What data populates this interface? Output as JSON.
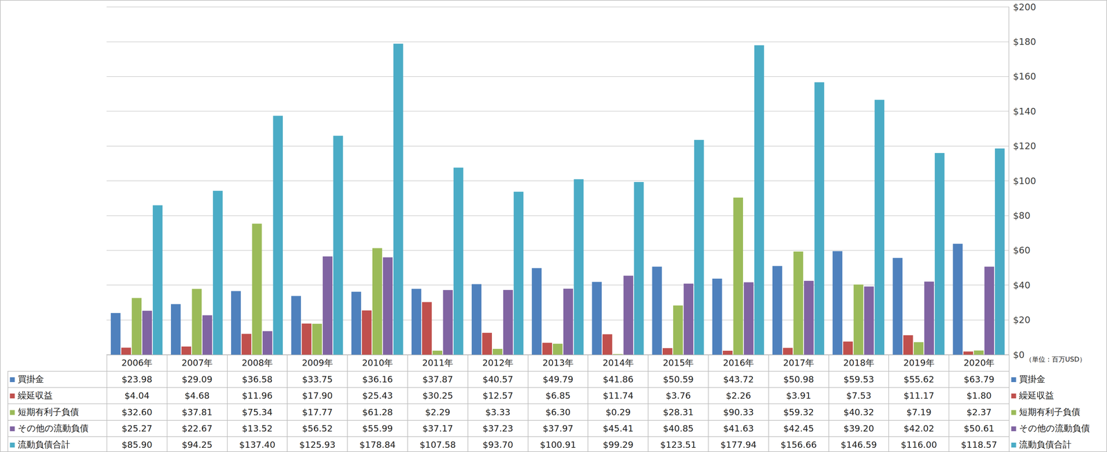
{
  "chart_data": {
    "type": "bar",
    "categories": [
      "2006年",
      "2007年",
      "2008年",
      "2009年",
      "2010年",
      "2011年",
      "2012年",
      "2013年",
      "2014年",
      "2015年",
      "2016年",
      "2017年",
      "2018年",
      "2019年",
      "2020年"
    ],
    "annotation": "（単位：百万USD）",
    "series": [
      {
        "name": "買掛金",
        "color": "#4f81bd",
        "values": [
          23.98,
          29.09,
          36.58,
          33.75,
          36.16,
          37.87,
          40.57,
          49.79,
          41.86,
          50.59,
          43.72,
          50.98,
          59.53,
          55.62,
          63.79
        ],
        "value_labels": [
          "$23.98",
          "$29.09",
          "$36.58",
          "$33.75",
          "$36.16",
          "$37.87",
          "$40.57",
          "$49.79",
          "$41.86",
          "$50.59",
          "$43.72",
          "$50.98",
          "$59.53",
          "$55.62",
          "$63.79"
        ]
      },
      {
        "name": "繰延収益",
        "color": "#c0504d",
        "values": [
          4.04,
          4.68,
          11.96,
          17.9,
          25.43,
          30.25,
          12.57,
          6.85,
          11.74,
          3.76,
          2.26,
          3.91,
          7.53,
          11.17,
          1.8
        ],
        "value_labels": [
          "$4.04",
          "$4.68",
          "$11.96",
          "$17.90",
          "$25.43",
          "$30.25",
          "$12.57",
          "$6.85",
          "$11.74",
          "$3.76",
          "$2.26",
          "$3.91",
          "$7.53",
          "$11.17",
          "$1.80"
        ]
      },
      {
        "name": "短期有利子負債",
        "color": "#9bbb59",
        "values": [
          32.6,
          37.81,
          75.34,
          17.77,
          61.28,
          2.29,
          3.33,
          6.3,
          0.29,
          28.31,
          90.33,
          59.32,
          40.32,
          7.19,
          2.37
        ],
        "value_labels": [
          "$32.60",
          "$37.81",
          "$75.34",
          "$17.77",
          "$61.28",
          "$2.29",
          "$3.33",
          "$6.30",
          "$0.29",
          "$28.31",
          "$90.33",
          "$59.32",
          "$40.32",
          "$7.19",
          "$2.37"
        ]
      },
      {
        "name": "その他の流動負債",
        "color": "#8064a2",
        "values": [
          25.27,
          22.67,
          13.52,
          56.52,
          55.99,
          37.17,
          37.23,
          37.97,
          45.41,
          40.85,
          41.63,
          42.45,
          39.2,
          42.02,
          50.61
        ],
        "value_labels": [
          "$25.27",
          "$22.67",
          "$13.52",
          "$56.52",
          "$55.99",
          "$37.17",
          "$37.23",
          "$37.97",
          "$45.41",
          "$40.85",
          "$41.63",
          "$42.45",
          "$39.20",
          "$42.02",
          "$50.61"
        ]
      },
      {
        "name": "流動負債合計",
        "color": "#4bacc6",
        "values": [
          85.9,
          94.25,
          137.4,
          125.93,
          178.84,
          107.58,
          93.7,
          100.91,
          99.29,
          123.51,
          177.94,
          156.66,
          146.59,
          116.0,
          118.57
        ],
        "value_labels": [
          "$85.90",
          "$94.25",
          "$137.40",
          "$125.93",
          "$178.84",
          "$107.58",
          "$93.70",
          "$100.91",
          "$99.29",
          "$123.51",
          "$177.94",
          "$156.66",
          "$146.59",
          "$116.00",
          "$118.57"
        ]
      }
    ],
    "ylim": [
      0,
      200
    ],
    "yticks": [
      {
        "value": 0,
        "label": "$0"
      },
      {
        "value": 20,
        "label": "$20"
      },
      {
        "value": 40,
        "label": "$40"
      },
      {
        "value": 60,
        "label": "$60"
      },
      {
        "value": 80,
        "label": "$80"
      },
      {
        "value": 100,
        "label": "$100"
      },
      {
        "value": 120,
        "label": "$120"
      },
      {
        "value": 140,
        "label": "$140"
      },
      {
        "value": 160,
        "label": "$160"
      },
      {
        "value": 180,
        "label": "$180"
      },
      {
        "value": 200,
        "label": "$200"
      }
    ],
    "grid": true
  }
}
